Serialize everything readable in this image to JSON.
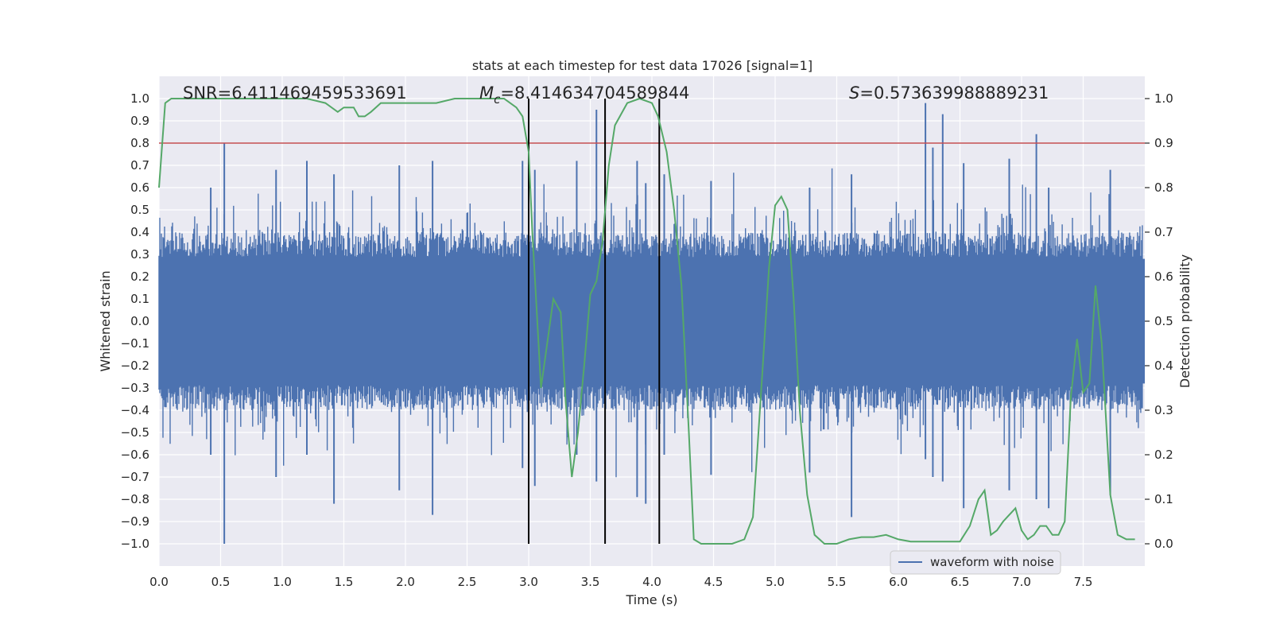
{
  "chart_data": {
    "type": "line",
    "title": "stats at each timestep for test data 17026 [signal=1]",
    "xlabel": "Time (s)",
    "ylabel_left": "Whitened strain",
    "ylabel_right": "Detection probability",
    "xlim": [
      0.0,
      8.0
    ],
    "ylim_left": [
      -1.1,
      1.1
    ],
    "ylim_right": [
      -0.05,
      1.05
    ],
    "x_ticks": [
      "0.0",
      "0.5",
      "1.0",
      "1.5",
      "2.0",
      "2.5",
      "3.0",
      "3.5",
      "4.0",
      "4.5",
      "5.0",
      "5.5",
      "6.0",
      "6.5",
      "7.0",
      "7.5"
    ],
    "y_left_ticks": [
      "1.0",
      "0.9",
      "0.8",
      "0.7",
      "0.6",
      "0.5",
      "0.4",
      "0.3",
      "0.2",
      "0.1",
      "0.0",
      "-0.1",
      "-0.2",
      "-0.3",
      "-0.4",
      "-0.5",
      "-0.6",
      "-0.7",
      "-0.8",
      "-0.9",
      "-1.0"
    ],
    "y_right_ticks": [
      "1.0",
      "0.9",
      "0.8",
      "0.7",
      "0.6",
      "0.5",
      "0.4",
      "0.3",
      "0.2",
      "0.1",
      "0.0"
    ],
    "grid": true,
    "annotations": {
      "snr": "SNR=6.411469459533691",
      "mc_symbol": "M",
      "mc_sub": "c",
      "mc_value": "=8.414634704589844",
      "s_symbol": "S",
      "s_value": "=0.573639988889231"
    },
    "legend": {
      "label": "waveform with noise",
      "placement": "lower-right"
    },
    "waveform": {
      "name": "waveform with noise",
      "color": "#4c72b0",
      "typical_envelope": 0.4,
      "peaks": [
        [
          0.53,
          0.8,
          -1.0
        ],
        [
          0.42,
          0.6,
          -0.6
        ],
        [
          0.95,
          0.68,
          -0.7
        ],
        [
          1.2,
          0.72,
          -0.6
        ],
        [
          1.42,
          0.66,
          -0.82
        ],
        [
          1.95,
          0.7,
          -0.76
        ],
        [
          2.22,
          0.72,
          -0.87
        ],
        [
          2.95,
          0.72,
          -0.66
        ],
        [
          3.05,
          0.68,
          -0.74
        ],
        [
          3.39,
          0.72,
          -0.6
        ],
        [
          3.55,
          0.95,
          -0.72
        ],
        [
          3.88,
          0.72,
          -0.79
        ],
        [
          3.95,
          0.62,
          -0.82
        ],
        [
          4.1,
          0.66,
          -0.6
        ],
        [
          4.48,
          0.63,
          -0.69
        ],
        [
          5.28,
          0.6,
          -0.68
        ],
        [
          5.62,
          0.66,
          -0.88
        ],
        [
          6.22,
          0.98,
          -0.62
        ],
        [
          6.28,
          0.78,
          -0.7
        ],
        [
          6.36,
          0.93,
          -0.72
        ],
        [
          6.53,
          0.71,
          -0.84
        ],
        [
          6.9,
          0.73,
          -0.76
        ],
        [
          7.12,
          0.84,
          -0.8
        ],
        [
          7.22,
          0.6,
          -0.84
        ],
        [
          7.72,
          0.68,
          -0.78
        ]
      ]
    },
    "probability": {
      "name": "detection probability",
      "color": "#55a868",
      "x": [
        0.0,
        0.05,
        0.1,
        0.15,
        0.3,
        0.5,
        0.8,
        1.0,
        1.2,
        1.35,
        1.45,
        1.5,
        1.58,
        1.62,
        1.67,
        1.72,
        1.8,
        2.0,
        2.25,
        2.4,
        2.6,
        2.8,
        2.9,
        2.95,
        3.0,
        3.03,
        3.06,
        3.1,
        3.15,
        3.2,
        3.26,
        3.3,
        3.35,
        3.4,
        3.45,
        3.5,
        3.55,
        3.6,
        3.65,
        3.7,
        3.8,
        3.9,
        4.0,
        4.05,
        4.12,
        4.18,
        4.24,
        4.3,
        4.34,
        4.4,
        4.5,
        4.65,
        4.75,
        4.82,
        4.9,
        4.95,
        5.0,
        5.05,
        5.1,
        5.15,
        5.2,
        5.26,
        5.32,
        5.4,
        5.5,
        5.6,
        5.7,
        5.8,
        5.9,
        6.0,
        6.1,
        6.2,
        6.3,
        6.4,
        6.5,
        6.58,
        6.65,
        6.7,
        6.75,
        6.8,
        6.85,
        6.95,
        7.0,
        7.05,
        7.1,
        7.15,
        7.2,
        7.25,
        7.3,
        7.35,
        7.4,
        7.45,
        7.5,
        7.55,
        7.6,
        7.65,
        7.72,
        7.78,
        7.85,
        7.92
      ],
      "values": [
        0.8,
        0.99,
        1.0,
        1.0,
        1.0,
        1.0,
        1.0,
        1.0,
        1.0,
        0.99,
        0.97,
        0.98,
        0.98,
        0.96,
        0.96,
        0.97,
        0.99,
        0.99,
        0.99,
        1.0,
        1.0,
        1.0,
        0.98,
        0.96,
        0.88,
        0.7,
        0.55,
        0.35,
        0.45,
        0.55,
        0.52,
        0.32,
        0.15,
        0.25,
        0.4,
        0.56,
        0.59,
        0.68,
        0.85,
        0.94,
        0.99,
        1.0,
        0.99,
        0.96,
        0.88,
        0.75,
        0.58,
        0.25,
        0.01,
        0.0,
        0.0,
        0.0,
        0.01,
        0.06,
        0.4,
        0.62,
        0.76,
        0.78,
        0.75,
        0.55,
        0.3,
        0.11,
        0.02,
        0.0,
        0.0,
        0.01,
        0.015,
        0.015,
        0.02,
        0.01,
        0.005,
        0.005,
        0.005,
        0.005,
        0.005,
        0.04,
        0.1,
        0.12,
        0.02,
        0.03,
        0.05,
        0.08,
        0.03,
        0.01,
        0.02,
        0.04,
        0.04,
        0.02,
        0.02,
        0.05,
        0.33,
        0.46,
        0.34,
        0.36,
        0.58,
        0.45,
        0.11,
        0.02,
        0.01,
        0.01
      ]
    },
    "threshold": {
      "name": "threshold",
      "value": 0.9,
      "color": "#c44e52"
    },
    "vertical_lines": [
      3.0,
      3.62,
      4.06
    ]
  }
}
